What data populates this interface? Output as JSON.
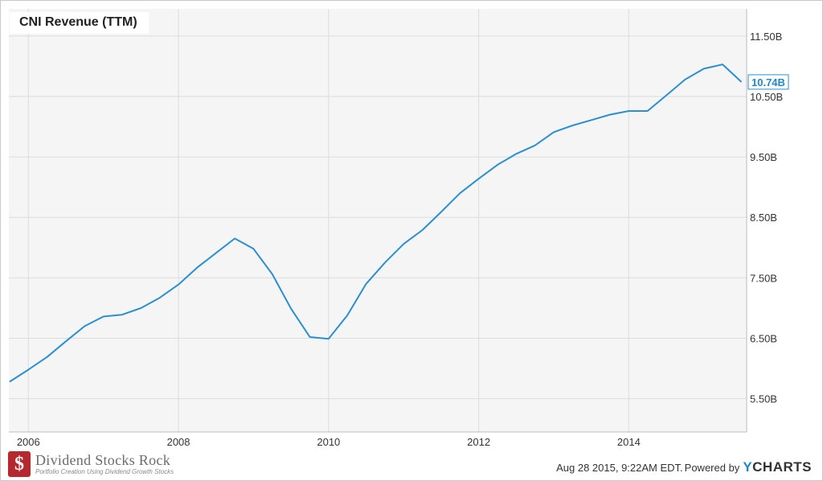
{
  "footer": {
    "brand_initial": "$",
    "brand_name": "Dividend Stocks Rock",
    "brand_tagline": "Portfolio Creation Using Dividend Growth Stocks",
    "timestamp": "Aug 28 2015, 9:22AM EDT.",
    "powered_by": "Powered by",
    "ycharts_y": "Y",
    "ycharts_rest": "CHARTS"
  },
  "chart_data": {
    "type": "line",
    "title": "CNI Revenue (TTM)",
    "xlabel": "",
    "ylabel": "",
    "xlim": [
      2005.74,
      2015.57
    ],
    "ylim": [
      4.95,
      11.95
    ],
    "x_ticks": [
      2006,
      2008,
      2010,
      2012,
      2014
    ],
    "x_tick_labels": [
      "2006",
      "2008",
      "2010",
      "2012",
      "2014"
    ],
    "y_ticks": [
      5.5,
      6.5,
      7.5,
      8.5,
      9.5,
      10.5,
      11.5
    ],
    "y_tick_labels": [
      "5.50B",
      "6.50B",
      "7.50B",
      "8.50B",
      "9.50B",
      "10.50B",
      "11.50B"
    ],
    "grid": true,
    "last_value_label": "10.74B",
    "colors": {
      "line": "#2b8fd0",
      "plot_bg": "#f5f5f5",
      "grid": "#dcdcdc",
      "axis_text": "#333333",
      "label_text": "#2287c9"
    },
    "series": [
      {
        "x": [
          2005.75,
          2006.0,
          2006.25,
          2006.5,
          2006.75,
          2007.0,
          2007.25,
          2007.5,
          2007.75,
          2008.0,
          2008.25,
          2008.5,
          2008.75,
          2009.0,
          2009.25,
          2009.5,
          2009.75,
          2010.0,
          2010.25,
          2010.5,
          2010.75,
          2011.0,
          2011.25,
          2011.5,
          2011.75,
          2012.0,
          2012.25,
          2012.5,
          2012.75,
          2013.0,
          2013.25,
          2013.5,
          2013.75,
          2014.0,
          2014.25,
          2014.5,
          2014.75,
          2015.0,
          2015.25,
          2015.5
        ],
        "values": [
          5.78,
          5.98,
          6.19,
          6.45,
          6.7,
          6.86,
          6.89,
          7.0,
          7.17,
          7.39,
          7.67,
          7.91,
          8.15,
          7.98,
          7.56,
          6.99,
          6.52,
          6.49,
          6.88,
          7.4,
          7.75,
          8.06,
          8.29,
          8.59,
          8.9,
          9.14,
          9.37,
          9.55,
          9.69,
          9.91,
          10.02,
          10.11,
          10.2,
          10.26,
          10.26,
          10.52,
          10.78,
          10.96,
          11.03,
          10.74
        ]
      }
    ]
  }
}
